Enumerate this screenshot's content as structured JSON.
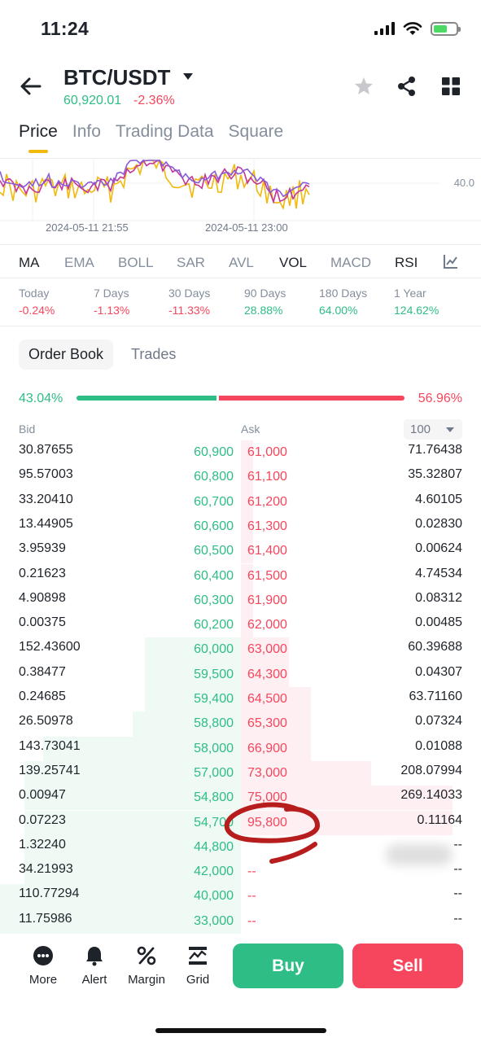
{
  "status_bar": {
    "time": "11:24"
  },
  "header": {
    "pair": "BTC/USDT",
    "price": "60,920.01",
    "change": "-2.36%"
  },
  "tabs": [
    {
      "label": "Price",
      "active": true
    },
    {
      "label": "Info"
    },
    {
      "label": "Trading Data"
    },
    {
      "label": "Square"
    }
  ],
  "chart": {
    "y_label": "40.0",
    "x_labels": [
      "2024-05-11 21:55",
      "2024-05-11 23:00"
    ],
    "colors": {
      "line1": "#f0b90b",
      "line2": "#c4359a",
      "line3": "#8a5bd6"
    }
  },
  "indicators": [
    {
      "label": "MA",
      "active": true
    },
    {
      "label": "EMA"
    },
    {
      "label": "BOLL"
    },
    {
      "label": "SAR"
    },
    {
      "label": "AVL"
    },
    {
      "label": "VOL",
      "active": true
    },
    {
      "label": "MACD"
    },
    {
      "label": "RSI",
      "active": true
    }
  ],
  "periods": [
    {
      "label": "Today",
      "value": "-0.24%",
      "dir": "neg"
    },
    {
      "label": "7 Days",
      "value": "-1.13%",
      "dir": "neg"
    },
    {
      "label": "30 Days",
      "value": "-11.33%",
      "dir": "neg"
    },
    {
      "label": "90 Days",
      "value": "28.88%",
      "dir": "pos"
    },
    {
      "label": "180 Days",
      "value": "64.00%",
      "dir": "pos"
    },
    {
      "label": "1 Year",
      "value": "124.62%",
      "dir": "pos"
    }
  ],
  "order_book": {
    "tabs": [
      {
        "label": "Order Book",
        "active": true
      },
      {
        "label": "Trades"
      }
    ],
    "bid_ratio": "43.04%",
    "ask_ratio": "56.96%",
    "bid_ratio_value": 43.04,
    "bid_header": "Bid",
    "ask_header": "Ask",
    "depth": "100",
    "rows": [
      {
        "bid_qty": "30.87655",
        "bid_price": "60,900",
        "ask_price": "61,000",
        "ask_qty": "71.76438",
        "bid_depth": 0.0,
        "ask_depth": 0.05
      },
      {
        "bid_qty": "95.57003",
        "bid_price": "60,800",
        "ask_price": "61,100",
        "ask_qty": "35.32807",
        "bid_depth": 0.0,
        "ask_depth": 0.05
      },
      {
        "bid_qty": "33.20410",
        "bid_price": "60,700",
        "ask_price": "61,200",
        "ask_qty": "4.60105",
        "bid_depth": 0.0,
        "ask_depth": 0.05
      },
      {
        "bid_qty": "13.44905",
        "bid_price": "60,600",
        "ask_price": "61,300",
        "ask_qty": "0.02830",
        "bid_depth": 0.0,
        "ask_depth": 0.05
      },
      {
        "bid_qty": "3.95939",
        "bid_price": "60,500",
        "ask_price": "61,400",
        "ask_qty": "0.00624",
        "bid_depth": 0.0,
        "ask_depth": 0.05
      },
      {
        "bid_qty": "0.21623",
        "bid_price": "60,400",
        "ask_price": "61,500",
        "ask_qty": "4.74534",
        "bid_depth": 0.0,
        "ask_depth": 0.05
      },
      {
        "bid_qty": "4.90898",
        "bid_price": "60,300",
        "ask_price": "61,900",
        "ask_qty": "0.08312",
        "bid_depth": 0.0,
        "ask_depth": 0.05
      },
      {
        "bid_qty": "0.00375",
        "bid_price": "60,200",
        "ask_price": "62,000",
        "ask_qty": "0.00485",
        "bid_depth": 0.0,
        "ask_depth": 0.05
      },
      {
        "bid_qty": "152.43600",
        "bid_price": "60,000",
        "ask_price": "63,000",
        "ask_qty": "60.39688",
        "bid_depth": 0.4,
        "ask_depth": 0.2
      },
      {
        "bid_qty": "0.38477",
        "bid_price": "59,500",
        "ask_price": "64,300",
        "ask_qty": "0.04307",
        "bid_depth": 0.4,
        "ask_depth": 0.2
      },
      {
        "bid_qty": "0.24685",
        "bid_price": "59,400",
        "ask_price": "64,500",
        "ask_qty": "63.71160",
        "bid_depth": 0.4,
        "ask_depth": 0.29
      },
      {
        "bid_qty": "26.50978",
        "bid_price": "58,800",
        "ask_price": "65,300",
        "ask_qty": "0.07324",
        "bid_depth": 0.45,
        "ask_depth": 0.29
      },
      {
        "bid_qty": "143.73041",
        "bid_price": "58,000",
        "ask_price": "66,900",
        "ask_qty": "0.01088",
        "bid_depth": 0.82,
        "ask_depth": 0.29
      },
      {
        "bid_qty": "139.25741",
        "bid_price": "57,000",
        "ask_price": "73,000",
        "ask_qty": "208.07994",
        "bid_depth": 0.9,
        "ask_depth": 0.54
      },
      {
        "bid_qty": "0.00947",
        "bid_price": "54,800",
        "ask_price": "75,000",
        "ask_qty": "269.14033",
        "bid_depth": 0.9,
        "ask_depth": 0.88
      },
      {
        "bid_qty": "0.07223",
        "bid_price": "54,700",
        "ask_price": "95,800",
        "ask_qty": "0.11164",
        "bid_depth": 0.9,
        "ask_depth": 0.88
      },
      {
        "bid_qty": "1.32240",
        "bid_price": "44,800",
        "ask_price": "",
        "ask_qty": "--",
        "bid_depth": 0.9,
        "ask_depth": 0.0
      },
      {
        "bid_qty": "34.21993",
        "bid_price": "42,000",
        "ask_price": "--",
        "ask_qty": "--",
        "bid_depth": 0.9,
        "ask_depth": 0.0
      },
      {
        "bid_qty": "110.77294",
        "bid_price": "40,000",
        "ask_price": "--",
        "ask_qty": "--",
        "bid_depth": 1.0,
        "ask_depth": 0.0
      },
      {
        "bid_qty": "11.75986",
        "bid_price": "33,000",
        "ask_price": "--",
        "ask_qty": "--",
        "bid_depth": 1.0,
        "ask_depth": 0.0
      }
    ]
  },
  "bottom_bar": {
    "items": [
      {
        "label": "More",
        "icon": "more-icon"
      },
      {
        "label": "Alert",
        "icon": "bell-icon"
      },
      {
        "label": "Margin",
        "icon": "percent-icon"
      },
      {
        "label": "Grid",
        "icon": "grid-icon"
      }
    ],
    "buy_label": "Buy",
    "sell_label": "Sell"
  },
  "colors": {
    "green": "#2ebd85",
    "red": "#f6465d",
    "accent": "#f0b90b",
    "annotation": "#b81d1d"
  }
}
